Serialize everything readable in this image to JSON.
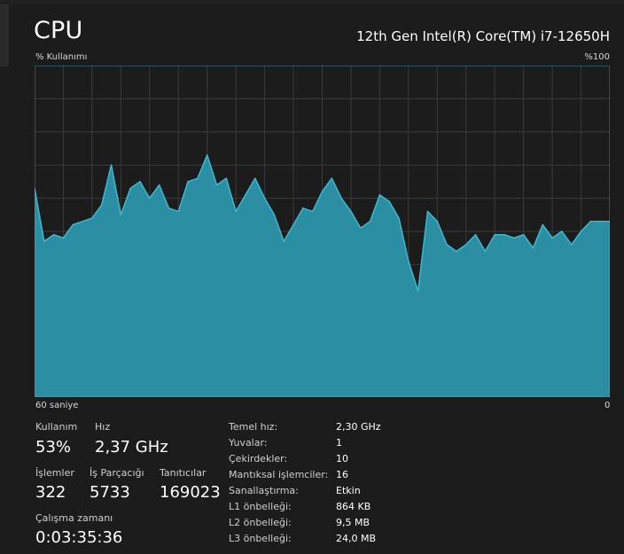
{
  "header": {
    "title": "CPU",
    "cpu_model": "12th Gen Intel(R) Core(TM) i7-12650H"
  },
  "graph": {
    "y_label": "% Kullanımı",
    "y_max_label": "%100",
    "x_left_label": "60 saniye",
    "x_right_label": "0",
    "line_color": "#3eb8cf",
    "fill_color": "#2b8ea3",
    "grid_color": "#3a3a3a"
  },
  "chart_data": {
    "type": "area",
    "title": "",
    "xlabel": "",
    "ylabel": "% Kullanımı",
    "ylim": [
      0,
      100
    ],
    "xlim": [
      60,
      0
    ],
    "grid": true,
    "x": [
      60,
      59,
      58,
      57,
      56,
      55,
      54,
      53,
      52,
      51,
      50,
      49,
      48,
      47,
      46,
      45,
      44,
      43,
      42,
      41,
      40,
      39,
      38,
      37,
      36,
      35,
      34,
      33,
      32,
      31,
      30,
      29,
      28,
      27,
      26,
      25,
      24,
      23,
      22,
      21,
      20,
      19,
      18,
      17,
      16,
      15,
      14,
      13,
      12,
      11,
      10,
      9,
      8,
      7,
      6,
      5,
      4,
      3,
      2,
      1,
      0
    ],
    "values": [
      63,
      47,
      49,
      48,
      52,
      53,
      54,
      58,
      70,
      55,
      63,
      65,
      60,
      64,
      57,
      56,
      65,
      66,
      73,
      64,
      66,
      56,
      61,
      66,
      60,
      55,
      47,
      52,
      57,
      56,
      62,
      66,
      60,
      56,
      51,
      53,
      61,
      59,
      54,
      41,
      32,
      56,
      53,
      46,
      44,
      46,
      49,
      44,
      49,
      49,
      48,
      49,
      45,
      52,
      48,
      50,
      46,
      50,
      53,
      53,
      53
    ]
  },
  "stats": {
    "usage": {
      "label": "Kullanım",
      "value": "53%"
    },
    "speed": {
      "label": "Hız",
      "value": "2,37 GHz"
    },
    "processes": {
      "label": "İşlemler",
      "value": "322"
    },
    "threads": {
      "label": "İş Parçacığı",
      "value": "5733"
    },
    "handles": {
      "label": "Tanıtıcılar",
      "value": "169023"
    },
    "uptime": {
      "label": "Çalışma zamanı",
      "value": "0:03:35:36"
    }
  },
  "info": [
    {
      "key": "Temel hız:",
      "value": "2,30 GHz"
    },
    {
      "key": "Yuvalar:",
      "value": "1"
    },
    {
      "key": "Çekirdekler:",
      "value": "10"
    },
    {
      "key": "Mantıksal işlemciler:",
      "value": "16"
    },
    {
      "key": "Sanallaştırma:",
      "value": "Etkin"
    },
    {
      "key": "L1 önbelleği:",
      "value": "864 KB"
    },
    {
      "key": "L2 önbelleği:",
      "value": "9,5 MB"
    },
    {
      "key": "L3 önbelleği:",
      "value": "24,0 MB"
    }
  ]
}
